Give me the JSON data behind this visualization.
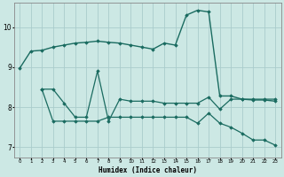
{
  "xlabel": "Humidex (Indice chaleur)",
  "background_color": "#cce8e4",
  "grid_color": "#aacccc",
  "line_color": "#1a6b60",
  "xlim": [
    -0.5,
    23.5
  ],
  "ylim": [
    6.75,
    10.6
  ],
  "yticks": [
    7,
    8,
    9,
    10
  ],
  "xticks": [
    0,
    1,
    2,
    3,
    4,
    5,
    6,
    7,
    8,
    9,
    10,
    11,
    12,
    13,
    14,
    15,
    16,
    17,
    18,
    19,
    20,
    21,
    22,
    23
  ],
  "line1_x": [
    0,
    1,
    2,
    3,
    4,
    5,
    6,
    7,
    8,
    9,
    10,
    11,
    12,
    13,
    14,
    15,
    16,
    17,
    18,
    19,
    20,
    21,
    22,
    23
  ],
  "line1_y": [
    8.97,
    9.4,
    9.42,
    9.5,
    9.55,
    9.6,
    9.62,
    9.65,
    9.62,
    9.6,
    9.55,
    9.5,
    9.45,
    9.6,
    9.55,
    10.3,
    10.42,
    10.38,
    8.28,
    8.28,
    8.2,
    8.18,
    8.18,
    8.15
  ],
  "line2_x": [
    2,
    3,
    4,
    5,
    6,
    7,
    8,
    9,
    10,
    11,
    12,
    13,
    14,
    15,
    16,
    17,
    18,
    19,
    20,
    21,
    22,
    23
  ],
  "line2_y": [
    8.45,
    8.45,
    8.1,
    7.75,
    7.75,
    8.9,
    7.65,
    8.2,
    8.15,
    8.15,
    8.15,
    8.1,
    8.1,
    8.1,
    8.1,
    8.25,
    7.95,
    8.2,
    8.2,
    8.2,
    8.2,
    8.2
  ],
  "line3_x": [
    2,
    3,
    4,
    5,
    6,
    7,
    8,
    9,
    10,
    11,
    12,
    13,
    14,
    15,
    16,
    17,
    18,
    19,
    20,
    21,
    22,
    23
  ],
  "line3_y": [
    8.45,
    7.65,
    7.65,
    7.65,
    7.65,
    7.65,
    7.75,
    7.75,
    7.75,
    7.75,
    7.75,
    7.75,
    7.75,
    7.75,
    7.6,
    7.85,
    7.6,
    7.5,
    7.35,
    7.18,
    7.18,
    7.05
  ]
}
